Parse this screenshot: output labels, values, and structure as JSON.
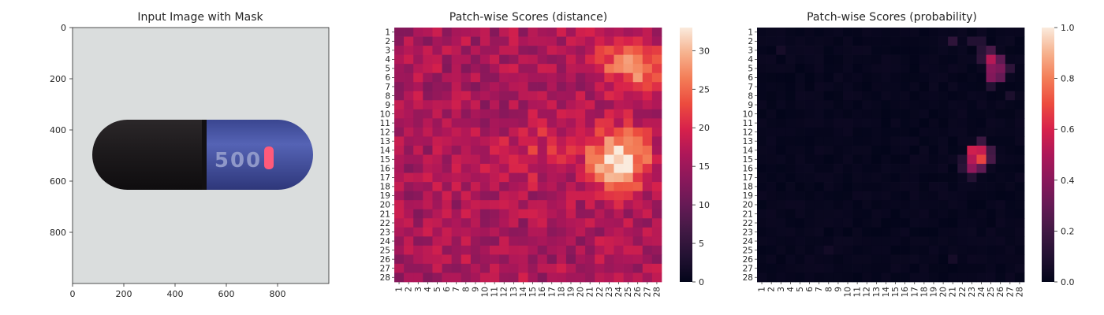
{
  "chart_data": [
    {
      "type": "image",
      "title": "Input Image with Mask",
      "x_ticks": [
        0,
        200,
        400,
        600,
        800
      ],
      "y_ticks": [
        0,
        200,
        400,
        600,
        800
      ],
      "xlim": [
        0,
        1000
      ],
      "ylim": [
        1000,
        0
      ],
      "capsule": {
        "left_cap_color": "#1e1b1e",
        "right_body_color": "#4753a6",
        "imprint_text": "500",
        "defect_mask_color": "#ff5a7a",
        "background_color": "#d9dcdd"
      }
    },
    {
      "type": "heatmap",
      "title": "Patch-wise Scores (distance)",
      "grid_size": 28,
      "row_labels": [
        "1",
        "2",
        "3",
        "4",
        "5",
        "6",
        "7",
        "8",
        "9",
        "10",
        "11",
        "12",
        "13",
        "14",
        "15",
        "16",
        "17",
        "18",
        "19",
        "20",
        "21",
        "22",
        "23",
        "24",
        "25",
        "26",
        "27",
        "28"
      ],
      "col_labels": [
        "1",
        "2",
        "3",
        "4",
        "5",
        "6",
        "7",
        "8",
        "9",
        "10",
        "11",
        "12",
        "13",
        "14",
        "15",
        "16",
        "17",
        "18",
        "19",
        "20",
        "21",
        "22",
        "23",
        "24",
        "25",
        "26",
        "27",
        "28"
      ],
      "vmin": 0,
      "vmax": 33,
      "colorbar_ticks": [
        0,
        5,
        10,
        15,
        20,
        25,
        30
      ],
      "background_value": 16,
      "hotspots": [
        {
          "row": 15,
          "col": 24,
          "value": 33,
          "radius": 2.3
        },
        {
          "row": 5,
          "col": 26,
          "value": 27,
          "radius": 1.8
        },
        {
          "row": 4,
          "col": 23,
          "value": 21,
          "radius": 1.5
        },
        {
          "row": 15,
          "col": 13,
          "value": 20,
          "radius": 2.0
        },
        {
          "row": 13,
          "col": 17,
          "value": 19,
          "radius": 1.8
        }
      ]
    },
    {
      "type": "heatmap",
      "title": "Patch-wise Scores (probability)",
      "grid_size": 28,
      "row_labels": [
        "1",
        "2",
        "3",
        "4",
        "5",
        "6",
        "7",
        "8",
        "9",
        "10",
        "11",
        "12",
        "13",
        "14",
        "15",
        "16",
        "17",
        "18",
        "19",
        "20",
        "21",
        "22",
        "23",
        "24",
        "25",
        "26",
        "27",
        "28"
      ],
      "col_labels": [
        "1",
        "2",
        "3",
        "4",
        "5",
        "6",
        "7",
        "8",
        "9",
        "10",
        "11",
        "12",
        "13",
        "14",
        "15",
        "16",
        "17",
        "18",
        "19",
        "20",
        "21",
        "22",
        "23",
        "24",
        "25",
        "26",
        "27",
        "28"
      ],
      "vmin": 0.0,
      "vmax": 1.0,
      "colorbar_ticks": [
        "0.0",
        "0.2",
        "0.4",
        "0.6",
        "0.8",
        "1.0"
      ],
      "hot_cells": [
        {
          "row": 15,
          "col": 24,
          "value": 0.68
        },
        {
          "row": 14,
          "col": 23,
          "value": 0.58
        },
        {
          "row": 14,
          "col": 24,
          "value": 0.56
        },
        {
          "row": 15,
          "col": 23,
          "value": 0.52
        },
        {
          "row": 16,
          "col": 23,
          "value": 0.42
        },
        {
          "row": 4,
          "col": 25,
          "value": 0.52
        },
        {
          "row": 5,
          "col": 25,
          "value": 0.4
        },
        {
          "row": 5,
          "col": 26,
          "value": 0.36
        },
        {
          "row": 6,
          "col": 25,
          "value": 0.38
        },
        {
          "row": 6,
          "col": 26,
          "value": 0.3
        },
        {
          "row": 4,
          "col": 26,
          "value": 0.28
        },
        {
          "row": 3,
          "col": 25,
          "value": 0.22
        },
        {
          "row": 16,
          "col": 24,
          "value": 0.28
        },
        {
          "row": 14,
          "col": 25,
          "value": 0.2
        },
        {
          "row": 13,
          "col": 24,
          "value": 0.18
        },
        {
          "row": 15,
          "col": 25,
          "value": 0.22
        },
        {
          "row": 2,
          "col": 21,
          "value": 0.14
        },
        {
          "row": 2,
          "col": 23,
          "value": 0.1
        },
        {
          "row": 2,
          "col": 24,
          "value": 0.1
        },
        {
          "row": 3,
          "col": 24,
          "value": 0.12
        },
        {
          "row": 4,
          "col": 24,
          "value": 0.14
        },
        {
          "row": 5,
          "col": 27,
          "value": 0.14
        },
        {
          "row": 7,
          "col": 25,
          "value": 0.1
        },
        {
          "row": 8,
          "col": 27,
          "value": 0.08
        },
        {
          "row": 3,
          "col": 3,
          "value": 0.06
        },
        {
          "row": 16,
          "col": 22,
          "value": 0.12
        },
        {
          "row": 15,
          "col": 22,
          "value": 0.1
        },
        {
          "row": 17,
          "col": 23,
          "value": 0.1
        },
        {
          "row": 25,
          "col": 8,
          "value": 0.05
        },
        {
          "row": 26,
          "col": 21,
          "value": 0.06
        }
      ]
    }
  ]
}
